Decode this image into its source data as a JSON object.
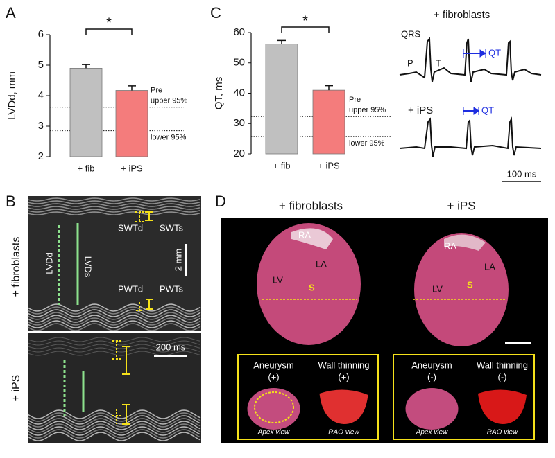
{
  "chart_data": [
    {
      "type": "bar",
      "panel": "A",
      "ylabel": "LVDd, mm",
      "categories": [
        "+ fib",
        "+ iPS"
      ],
      "values": [
        4.9,
        4.17
      ],
      "errors": [
        0.12,
        0.15
      ],
      "colors": [
        "#c0c0c0",
        "#f47c7c"
      ],
      "ylim": [
        2,
        6
      ],
      "yticks": [
        2,
        3,
        4,
        5,
        6
      ],
      "reference_lines": [
        3.62,
        2.85
      ],
      "reference_labels": [
        "Pre",
        "upper 95%",
        "lower  95%"
      ],
      "significance": "*"
    },
    {
      "type": "bar",
      "panel": "C",
      "ylabel": "QT, ms",
      "categories": [
        "+ fib",
        "+ iPS"
      ],
      "values": [
        56.2,
        41.0
      ],
      "errors": [
        1.2,
        1.5
      ],
      "colors": [
        "#c0c0c0",
        "#f47c7c"
      ],
      "ylim": [
        20,
        60
      ],
      "yticks": [
        20,
        30,
        40,
        50,
        60
      ],
      "reference_lines": [
        32.3,
        25.7
      ],
      "reference_labels": [
        "Pre",
        "upper 95%",
        "lower  95%"
      ],
      "significance": "*"
    }
  ],
  "ecg": {
    "title_fib": "+ fibroblasts",
    "qrs": "QRS",
    "p": "P",
    "t": "T",
    "qt_fib": "QT",
    "title_ips": "+ iPS",
    "qt_ips": "QT",
    "scale": "100 ms"
  },
  "mmode": {
    "panel": "B",
    "group_fib": "+ fibroblasts",
    "group_ips": "+ iPS",
    "lvdd": "LVDd",
    "lvds": "LVDs",
    "swtd": "SWTd",
    "swts": "SWTs",
    "pwtd": "PWTd",
    "pwts": "PWTs",
    "scale_mm": "2 mm",
    "scale_ms": "200 ms"
  },
  "hearts": {
    "panel": "D",
    "title_fib": "+ fibroblasts",
    "title_ips": "+ iPS",
    "labels_fib": [
      "RA",
      "LA",
      "LV",
      "S"
    ],
    "labels_ips": [
      "RA",
      "LA",
      "LV",
      "S"
    ],
    "insets": [
      {
        "name": "Aneurysm",
        "sign": "(+)",
        "view": "Apex view"
      },
      {
        "name": "Wall thinning",
        "sign": "(+)",
        "view": "RAO view"
      },
      {
        "name": "Aneurysm",
        "sign": "(-)",
        "view": "Apex view"
      },
      {
        "name": "Wall thinning",
        "sign": "(-)",
        "view": "RAO view"
      }
    ]
  }
}
